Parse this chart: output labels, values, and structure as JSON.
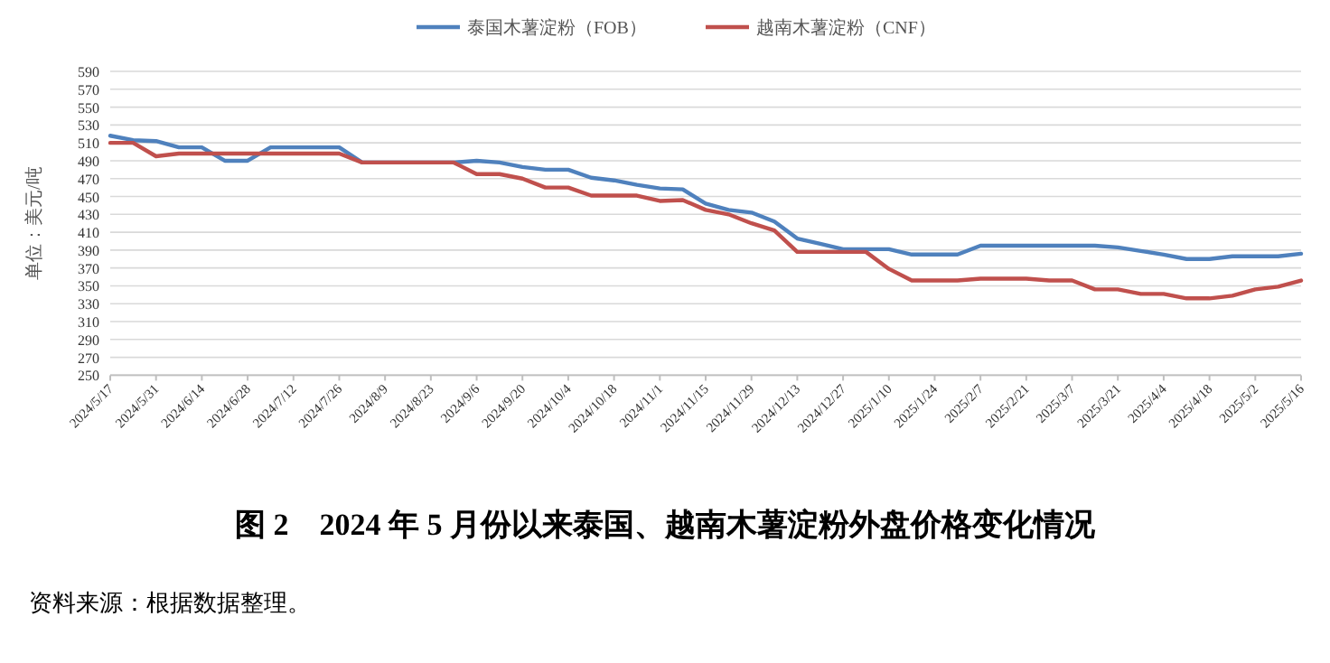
{
  "chart_data": {
    "type": "line",
    "title": "图 2　2024 年 5 月份以来泰国、越南木薯淀粉外盘价格变化情况",
    "ylabel": "单位：美元/吨",
    "annotations": [
      "资料来源：根据数据整理。"
    ],
    "categories": [
      "2024/5/17",
      null,
      "2024/5/31",
      null,
      "2024/6/14",
      null,
      "2024/6/28",
      null,
      "2024/7/12",
      null,
      "2024/7/26",
      null,
      "2024/8/9",
      null,
      "2024/8/23",
      null,
      "2024/9/6",
      null,
      "2024/9/20",
      null,
      "2024/10/4",
      null,
      "2024/10/18",
      null,
      "2024/11/1",
      null,
      "2024/11/15",
      null,
      "2024/11/29",
      null,
      "2024/12/13",
      null,
      "2024/12/27",
      null,
      "2025/1/10",
      null,
      "2025/1/24",
      null,
      "2025/2/7",
      null,
      "2025/2/21",
      null,
      "2025/3/7",
      null,
      "2025/3/21",
      null,
      "2025/4/4",
      null,
      "2025/4/18",
      null,
      "2025/5/2",
      null,
      "2025/5/16"
    ],
    "series": [
      {
        "name": "泰国木薯淀粉（FOB）",
        "color": "#4f81bd",
        "values": [
          518,
          513,
          512,
          505,
          505,
          490,
          490,
          505,
          505,
          505,
          505,
          488,
          488,
          488,
          488,
          488,
          490,
          488,
          483,
          480,
          480,
          471,
          468,
          463,
          459,
          458,
          442,
          435,
          432,
          422,
          403,
          397,
          391,
          391,
          391,
          385,
          385,
          385,
          395,
          395,
          395,
          395,
          395,
          395,
          393,
          389,
          385,
          380,
          380,
          383,
          383,
          383,
          386
        ]
      },
      {
        "name": "越南木薯淀粉（CNF）",
        "color": "#c0504d",
        "values": [
          510,
          510,
          495,
          498,
          498,
          498,
          498,
          498,
          498,
          498,
          498,
          488,
          488,
          488,
          488,
          488,
          475,
          475,
          470,
          460,
          460,
          451,
          451,
          451,
          445,
          446,
          435,
          430,
          420,
          412,
          388,
          388,
          388,
          388,
          369,
          356,
          356,
          356,
          358,
          358,
          358,
          356,
          356,
          346,
          346,
          341,
          341,
          336,
          336,
          339,
          346,
          349,
          356
        ]
      }
    ],
    "ylim": [
      250,
      590
    ],
    "yticks": [
      250,
      270,
      290,
      310,
      330,
      350,
      370,
      390,
      410,
      430,
      450,
      470,
      490,
      510,
      530,
      550,
      570,
      590
    ],
    "grid": "y",
    "legend": "top"
  }
}
